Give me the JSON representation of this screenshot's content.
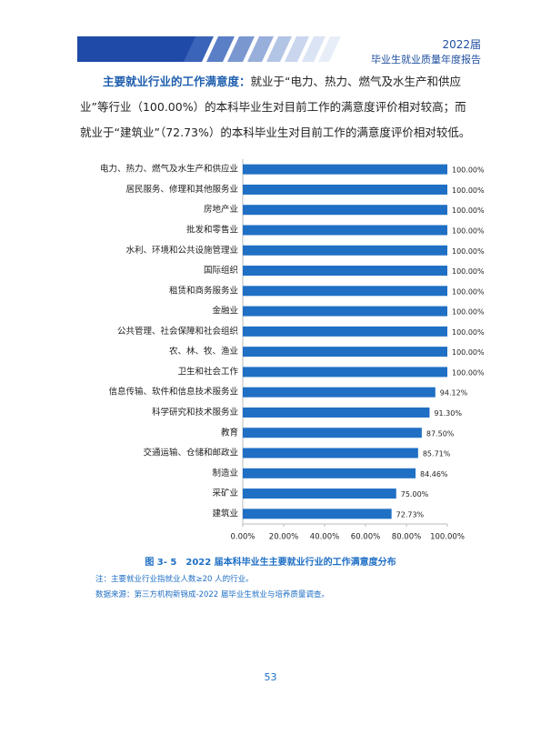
{
  "header": {
    "year": "2022届",
    "title": "毕业生就业质量年度报告"
  },
  "paragraph": {
    "lead": "主要就业行业的工作满意度：",
    "body": "就业于“电力、热力、燃气及水生产和供应业”等行业（100.00%）的本科毕业生对目前工作的满意度评价相对较高；而就业于“建筑业”（72.73%）的本科毕业生对目前工作的满意度评价相对较低。"
  },
  "chart_data": {
    "type": "barh",
    "categories": [
      "电力、热力、燃气及水生产和供应业",
      "居民服务、修理和其他服务业",
      "房地产业",
      "批发和零售业",
      "水利、环境和公共设施管理业",
      "国际组织",
      "租赁和商务服务业",
      "金融业",
      "公共管理、社会保障和社会组织",
      "农、林、牧、渔业",
      "卫生和社会工作",
      "信息传输、软件和信息技术服务业",
      "科学研究和技术服务业",
      "教育",
      "交通运输、仓储和邮政业",
      "制造业",
      "采矿业",
      "建筑业"
    ],
    "values": [
      100,
      100,
      100,
      100,
      100,
      100,
      100,
      100,
      100,
      100,
      100,
      94.12,
      91.3,
      87.5,
      85.71,
      84.46,
      75.0,
      72.73
    ],
    "value_labels": [
      "100.00%",
      "100.00%",
      "100.00%",
      "100.00%",
      "100.00%",
      "100.00%",
      "100.00%",
      "100.00%",
      "100.00%",
      "100.00%",
      "100.00%",
      "94.12%",
      "91.30%",
      "87.50%",
      "85.71%",
      "84.46%",
      "75.00%",
      "72.73%"
    ],
    "color": "#1f6fc4",
    "xlim": [
      0,
      100
    ],
    "xticks": [
      {
        "value": 0,
        "label": "0.00%"
      },
      {
        "value": 20,
        "label": "20.00%"
      },
      {
        "value": 40,
        "label": "40.00%"
      },
      {
        "value": 60,
        "label": "60.00%"
      },
      {
        "value": 80,
        "label": "80.00%"
      },
      {
        "value": 100,
        "label": "100.00%"
      }
    ]
  },
  "caption": "图 3- 5　2022 届本科毕业生主要就业行业的工作满意度分布",
  "notes": [
    "注：主要就业行业指就业人数≥20 人的行业。",
    "数据来源：第三方机构新锦成-2022 届毕业生就业与培养质量调查。"
  ],
  "page_number": "53"
}
